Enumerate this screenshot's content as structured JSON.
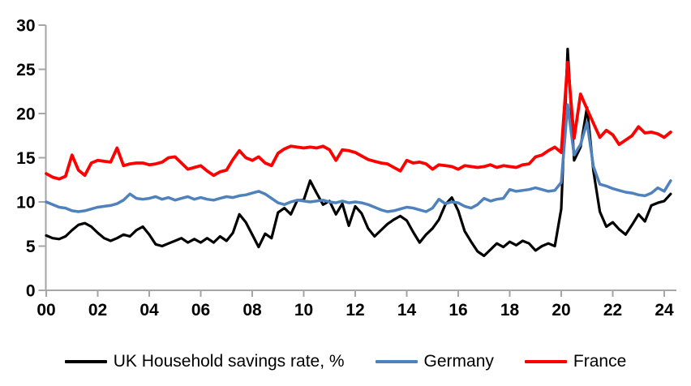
{
  "chart_data": {
    "type": "line",
    "title": "",
    "xlabel": "",
    "ylabel": "",
    "grid": false,
    "legend_position": "bottom",
    "ylim": [
      0,
      30
    ],
    "y_ticks": [
      0,
      5,
      10,
      15,
      20,
      25,
      30
    ],
    "x_tick_years": [
      2000,
      2002,
      2004,
      2006,
      2008,
      2010,
      2012,
      2014,
      2016,
      2018,
      2020,
      2022,
      2024
    ],
    "x_tick_labels": [
      "00",
      "02",
      "04",
      "06",
      "08",
      "10",
      "12",
      "14",
      "16",
      "18",
      "20",
      "22",
      "24"
    ],
    "x_start_year": 2000,
    "x_step_years": 0.25,
    "frequency": "quarterly",
    "axis_color": "#a6a6a6",
    "series": [
      {
        "id": "uk",
        "name": "UK Household savings rate, %",
        "color": "#000000",
        "values": [
          6.2,
          5.9,
          5.8,
          6.1,
          6.8,
          7.4,
          7.6,
          7.2,
          6.5,
          5.9,
          5.6,
          5.9,
          6.3,
          6.1,
          6.8,
          7.2,
          6.3,
          5.2,
          5.0,
          5.3,
          5.6,
          5.9,
          5.4,
          5.8,
          5.4,
          5.9,
          5.4,
          6.1,
          5.6,
          6.5,
          8.6,
          7.7,
          6.3,
          4.9,
          6.4,
          5.9,
          8.8,
          9.3,
          8.6,
          10.2,
          10.2,
          12.4,
          11.0,
          9.7,
          10.1,
          8.6,
          9.8,
          7.3,
          9.5,
          8.7,
          7.0,
          6.1,
          6.8,
          7.5,
          8.0,
          8.4,
          7.9,
          6.6,
          5.4,
          6.3,
          7.0,
          8.0,
          9.7,
          10.5,
          9.0,
          6.7,
          5.5,
          4.4,
          3.9,
          4.6,
          5.3,
          4.9,
          5.5,
          5.1,
          5.6,
          5.3,
          4.5,
          5.0,
          5.3,
          5.0,
          9.2,
          27.3,
          14.7,
          16.2,
          20.7,
          13.5,
          8.9,
          7.2,
          7.7,
          6.9,
          6.3,
          7.4,
          8.6,
          7.8,
          9.6,
          9.9,
          10.1,
          10.9
        ]
      },
      {
        "id": "germany",
        "name": "Germany",
        "color": "#4f81bd",
        "values": [
          10.0,
          9.7,
          9.4,
          9.3,
          9.0,
          8.9,
          9.0,
          9.2,
          9.4,
          9.5,
          9.6,
          9.8,
          10.2,
          10.9,
          10.4,
          10.3,
          10.4,
          10.6,
          10.3,
          10.5,
          10.2,
          10.4,
          10.6,
          10.3,
          10.5,
          10.3,
          10.2,
          10.4,
          10.6,
          10.5,
          10.7,
          10.8,
          11.0,
          11.2,
          10.9,
          10.4,
          9.9,
          9.7,
          10.0,
          10.2,
          10.1,
          10.0,
          10.1,
          10.2,
          10.0,
          9.9,
          10.1,
          9.9,
          10.0,
          9.9,
          9.7,
          9.4,
          9.1,
          8.9,
          9.0,
          9.2,
          9.4,
          9.3,
          9.1,
          8.9,
          9.3,
          10.3,
          9.8,
          10.0,
          9.9,
          9.5,
          9.3,
          9.7,
          10.4,
          10.1,
          10.3,
          10.4,
          11.4,
          11.2,
          11.3,
          11.4,
          11.6,
          11.4,
          11.2,
          11.3,
          12.2,
          21.0,
          15.3,
          16.5,
          19.0,
          14.0,
          12.0,
          11.8,
          11.5,
          11.3,
          11.1,
          11.0,
          10.8,
          10.7,
          11.0,
          11.6,
          11.2,
          12.4
        ]
      },
      {
        "id": "france",
        "name": "France",
        "color": "#fe0000",
        "values": [
          13.2,
          12.8,
          12.6,
          12.9,
          15.3,
          13.6,
          13.0,
          14.4,
          14.7,
          14.6,
          14.5,
          16.1,
          14.1,
          14.3,
          14.4,
          14.4,
          14.2,
          14.3,
          14.5,
          15.0,
          15.1,
          14.4,
          13.7,
          13.9,
          14.1,
          13.5,
          13.0,
          13.4,
          13.6,
          14.8,
          15.8,
          15.0,
          14.7,
          15.1,
          14.4,
          14.1,
          15.5,
          16.0,
          16.3,
          16.2,
          16.1,
          16.2,
          16.1,
          16.3,
          15.9,
          14.7,
          15.9,
          15.8,
          15.6,
          15.2,
          14.8,
          14.6,
          14.4,
          14.3,
          13.9,
          13.5,
          14.7,
          14.4,
          14.5,
          14.3,
          13.7,
          14.2,
          14.1,
          14.0,
          13.7,
          14.1,
          14.0,
          13.9,
          14.0,
          14.2,
          13.9,
          14.1,
          14.0,
          13.9,
          14.2,
          14.3,
          15.1,
          15.3,
          15.8,
          16.2,
          15.6,
          25.8,
          17.2,
          22.2,
          20.5,
          18.9,
          17.3,
          18.1,
          17.6,
          16.5,
          17.0,
          17.5,
          18.5,
          17.8,
          17.9,
          17.7,
          17.3,
          17.9
        ]
      }
    ]
  },
  "legend": {
    "uk_label": "UK Household savings rate, %",
    "germany_label": "Germany",
    "france_label": "France"
  }
}
